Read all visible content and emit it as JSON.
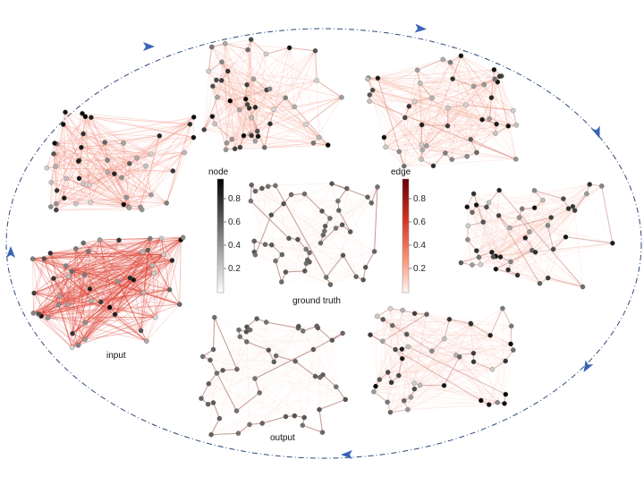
{
  "labels": {
    "input": "input",
    "output": "output",
    "ground_truth": "ground truth",
    "node_colorbar": "node",
    "edge_colorbar": "edge"
  },
  "colorbars": {
    "node": {
      "ticks": [
        "0.8",
        "0.6",
        "0.4",
        "0.2"
      ],
      "colors": [
        "#000000",
        "#ffffff"
      ]
    },
    "edge": {
      "ticks": [
        "0.8",
        "0.6",
        "0.4",
        "0.2"
      ],
      "colors": [
        "#67000d",
        "#ef3b2c",
        "#fcbba1",
        "#fff5f0"
      ]
    }
  },
  "colors": {
    "cycle_arrow": "#3a63b8",
    "cycle_line": "#2e4a7a"
  }
}
